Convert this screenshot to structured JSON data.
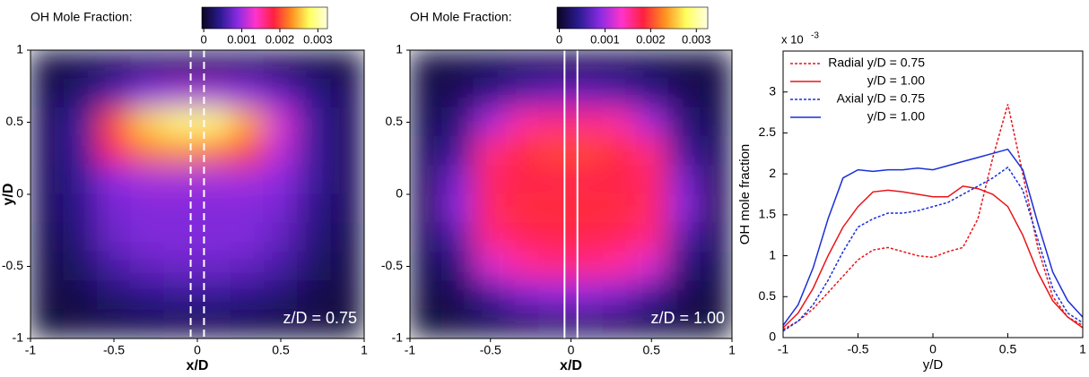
{
  "chart_data": [
    {
      "type": "heatmap",
      "colorbar_label": "OH Mole Fraction:",
      "clim": [
        -5e-05,
        0.00325
      ],
      "colorbar_ticks": [
        0,
        0.001,
        0.002,
        0.003
      ],
      "colormap": [
        "#0a0520",
        "#2a1a90",
        "#8a2be2",
        "#ff33cc",
        "#ff2040",
        "#ff9020",
        "#ffff60",
        "#ffffe0"
      ],
      "x": [
        -0.9,
        -0.7,
        -0.5,
        -0.3,
        -0.1,
        0.1,
        0.3,
        0.5,
        0.7,
        0.9
      ],
      "y": [
        0.9,
        0.7,
        0.5,
        0.3,
        0.1,
        -0.1,
        -0.3,
        -0.5,
        -0.7,
        -0.9
      ],
      "z": [
        [
          0.0001,
          0.00015,
          0.0002,
          0.00025,
          0.00025,
          0.00025,
          0.00025,
          0.0002,
          0.00015,
          0.0001
        ],
        [
          0.00015,
          0.0003,
          0.0006,
          0.0009,
          0.001,
          0.001,
          0.0009,
          0.0007,
          0.0004,
          0.0002
        ],
        [
          0.0002,
          0.0005,
          0.002,
          0.0026,
          0.0029,
          0.0029,
          0.0024,
          0.0012,
          0.0005,
          0.0002
        ],
        [
          0.0002,
          0.0005,
          0.0017,
          0.0022,
          0.0023,
          0.0022,
          0.002,
          0.0011,
          0.0005,
          0.0002
        ],
        [
          0.0002,
          0.00045,
          0.0009,
          0.001,
          0.001,
          0.001,
          0.001,
          0.0009,
          0.0005,
          0.0002
        ],
        [
          0.0002,
          0.0004,
          0.0008,
          0.00085,
          0.00085,
          0.00085,
          0.00085,
          0.0008,
          0.0004,
          0.0002
        ],
        [
          0.00015,
          0.00035,
          0.00075,
          0.00085,
          0.00085,
          0.00085,
          0.00085,
          0.0007,
          0.00035,
          0.00015
        ],
        [
          0.00012,
          0.00025,
          0.00055,
          0.0007,
          0.00075,
          0.00075,
          0.0007,
          0.00055,
          0.00025,
          0.00012
        ],
        [
          0.0001,
          0.00015,
          0.0003,
          0.0004,
          0.00045,
          0.00045,
          0.0004,
          0.0003,
          0.00015,
          0.0001
        ],
        [
          5e-05,
          0.0001,
          0.00012,
          0.00015,
          0.00018,
          0.00018,
          0.00015,
          0.00012,
          0.0001,
          5e-05
        ]
      ],
      "xlim": [
        -1,
        1
      ],
      "ylim": [
        -1,
        1
      ],
      "xticks": [
        -1,
        -0.5,
        0,
        0.5,
        1
      ],
      "yticks": [
        -1,
        -0.5,
        0,
        0.5,
        1
      ],
      "xlabel": "x/D",
      "ylabel": "y/D",
      "annotation": "z/D = 0.75",
      "vlines": [
        -0.04,
        0.04
      ],
      "vline_style": "dashed"
    },
    {
      "type": "heatmap",
      "colorbar_label": "OH Mole Fraction:",
      "clim": [
        -5e-05,
        0.00325
      ],
      "colorbar_ticks": [
        0,
        0.001,
        0.002,
        0.003
      ],
      "colormap": [
        "#0a0520",
        "#2a1a90",
        "#8a2be2",
        "#ff33cc",
        "#ff2040",
        "#ff9020",
        "#ffff60",
        "#ffffe0"
      ],
      "x": [
        -0.9,
        -0.7,
        -0.5,
        -0.3,
        -0.1,
        0.1,
        0.3,
        0.5,
        0.7,
        0.9
      ],
      "y": [
        0.9,
        0.7,
        0.5,
        0.3,
        0.1,
        -0.1,
        -0.3,
        -0.5,
        -0.7,
        -0.9
      ],
      "z": [
        [
          0.0001,
          0.00012,
          0.00015,
          0.0002,
          0.0002,
          0.0002,
          0.0002,
          0.00015,
          0.00012,
          0.0001
        ],
        [
          0.00012,
          0.0002,
          0.0004,
          0.0006,
          0.0007,
          0.0007,
          0.0006,
          0.0004,
          0.0002,
          0.00012
        ],
        [
          0.00015,
          0.00035,
          0.001,
          0.0015,
          0.0016,
          0.0016,
          0.0015,
          0.001,
          0.00035,
          0.00015
        ],
        [
          0.0002,
          0.0005,
          0.0016,
          0.0019,
          0.002,
          0.002,
          0.0019,
          0.0016,
          0.0005,
          0.0002
        ],
        [
          0.0002,
          0.0008,
          0.0017,
          0.0018,
          0.0018,
          0.0018,
          0.0018,
          0.0017,
          0.0008,
          0.0002
        ],
        [
          0.0002,
          0.0009,
          0.0017,
          0.0019,
          0.0019,
          0.0019,
          0.0019,
          0.0017,
          0.0009,
          0.0002
        ],
        [
          0.0002,
          0.0006,
          0.0016,
          0.00175,
          0.0018,
          0.0018,
          0.00175,
          0.0016,
          0.0006,
          0.0002
        ],
        [
          0.00015,
          0.00035,
          0.0012,
          0.0015,
          0.0016,
          0.0016,
          0.0015,
          0.0012,
          0.00035,
          0.00015
        ],
        [
          0.0001,
          0.0002,
          0.0005,
          0.0008,
          0.0009,
          0.0009,
          0.0008,
          0.0005,
          0.0002,
          0.0001
        ],
        [
          5e-05,
          0.0001,
          0.00015,
          0.0002,
          0.00025,
          0.00025,
          0.0002,
          0.00015,
          0.0001,
          5e-05
        ]
      ],
      "xlim": [
        -1,
        1
      ],
      "ylim": [
        -1,
        1
      ],
      "xticks": [
        -1,
        -0.5,
        0,
        0.5,
        1
      ],
      "yticks": [
        -1,
        -0.5,
        0,
        0.5,
        1
      ],
      "xlabel": "x/D",
      "annotation": "z/D = 1.00",
      "vlines": [
        -0.04,
        0.04
      ],
      "vline_style": "solid"
    },
    {
      "type": "line",
      "xlabel": "y/D",
      "ylabel": "OH mole fraction",
      "y_scale_label": {
        "base": "x 10",
        "exponent": "-3"
      },
      "x": [
        -1,
        -0.9,
        -0.8,
        -0.7,
        -0.6,
        -0.5,
        -0.4,
        -0.3,
        -0.2,
        -0.1,
        0,
        0.1,
        0.2,
        0.3,
        0.4,
        0.5,
        0.6,
        0.7,
        0.8,
        0.9,
        1
      ],
      "xlim": [
        -1,
        1
      ],
      "ylim": [
        0,
        3.5
      ],
      "xticks": [
        -1,
        -0.5,
        0,
        0.5,
        1
      ],
      "yticks": [
        0,
        0.5,
        1,
        1.5,
        2,
        2.5,
        3
      ],
      "legend": "upper left",
      "series": [
        {
          "name": "Radial y/D = 0.75",
          "color": "#e8151b",
          "style": "dashed",
          "values": [
            0.1,
            0.2,
            0.35,
            0.55,
            0.75,
            0.95,
            1.07,
            1.1,
            1.05,
            1.0,
            0.98,
            1.05,
            1.1,
            1.45,
            2.2,
            2.85,
            2.0,
            1.1,
            0.5,
            0.25,
            0.15
          ]
        },
        {
          "name": "y/D = 1.00",
          "color": "#e8151b",
          "style": "solid",
          "values": [
            0.12,
            0.3,
            0.6,
            1.0,
            1.35,
            1.6,
            1.78,
            1.8,
            1.78,
            1.75,
            1.72,
            1.72,
            1.85,
            1.82,
            1.75,
            1.6,
            1.25,
            0.8,
            0.45,
            0.25,
            0.12
          ]
        },
        {
          "name": "Axial y/D = 0.75",
          "color": "#1a2fd6",
          "style": "dashed",
          "values": [
            0.08,
            0.2,
            0.4,
            0.7,
            1.05,
            1.35,
            1.45,
            1.52,
            1.52,
            1.55,
            1.6,
            1.65,
            1.75,
            1.85,
            1.95,
            2.08,
            1.8,
            1.2,
            0.6,
            0.3,
            0.18
          ]
        },
        {
          "name": "y/D = 1.00",
          "color": "#1a2fd6",
          "style": "solid",
          "values": [
            0.15,
            0.4,
            0.85,
            1.45,
            1.95,
            2.05,
            2.03,
            2.05,
            2.05,
            2.07,
            2.05,
            2.1,
            2.15,
            2.2,
            2.25,
            2.3,
            2.05,
            1.4,
            0.8,
            0.45,
            0.25
          ]
        }
      ]
    }
  ]
}
